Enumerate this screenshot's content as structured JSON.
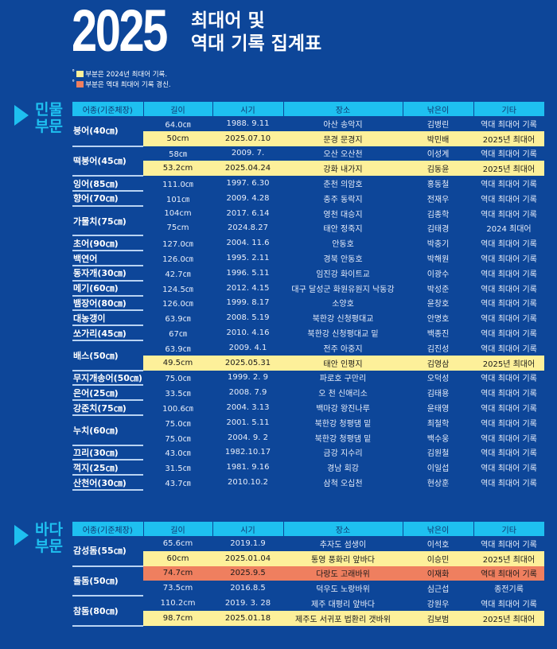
{
  "header": {
    "year": "2025",
    "title_line1": "최대어 및",
    "title_line2": "역대 기록 집계표"
  },
  "legend": [
    {
      "color": "#fdf09a",
      "text": "부분은 2024년 최대어 기록."
    },
    {
      "color": "#ef7f5f",
      "text": "부분은 역대 최대어 기록 경신."
    }
  ],
  "columns": [
    "어종(기준체장)",
    "길이",
    "시기",
    "장소",
    "낚은이",
    "기타"
  ],
  "colors": {
    "background": "#0d4699",
    "header": "#1ec0f0",
    "yellow": "#fdf09a",
    "red": "#ef7f5f"
  },
  "sections": [
    {
      "label1": "민물",
      "label2": "부문",
      "groups": [
        {
          "species": "붕어(40㎝)",
          "rows": [
            [
              "64.0㎝",
              "1988. 9.11",
              "아산 송악지",
              "김병린",
              "역대 최대어 기록",
              ""
            ],
            [
              "50cm",
              "2025.07.10",
              "문경 문경지",
              "박민배",
              "2025년 최대어",
              "y"
            ]
          ]
        },
        {
          "species": "떡붕어(45㎝)",
          "rows": [
            [
              "58㎝",
              "2009. 7.",
              "오산 오산천",
              "이성계",
              "역대 최대어 기록",
              ""
            ],
            [
              "53.2cm",
              "2025.04.24",
              "강화 내가지",
              "김동윤",
              "2025년 최대어",
              "y"
            ]
          ]
        },
        {
          "species": "잉어(85㎝)",
          "rows": [
            [
              "111.0㎝",
              "1997. 6.30",
              "춘천 의암호",
              "홍동철",
              "역대 최대어 기록",
              ""
            ]
          ]
        },
        {
          "species": "향어(70㎝)",
          "rows": [
            [
              "101㎝",
              "2009. 4.28",
              "충주 동락지",
              "전재우",
              "역대 최대어 기록",
              ""
            ]
          ]
        },
        {
          "species": "가물치(75㎝)",
          "rows": [
            [
              "104cm",
              "2017. 6.14",
              "영천 대승지",
              "김종학",
              "역대 최대어 기록",
              ""
            ],
            [
              "75cm",
              "2024.8.27",
              "태안 정죽지",
              "김태경",
              "2024 최대어",
              ""
            ]
          ]
        },
        {
          "species": "초어(90㎝)",
          "rows": [
            [
              "127.0㎝",
              "2004. 11.6",
              "안동호",
              "박충기",
              "역대 최대어 기록",
              ""
            ]
          ]
        },
        {
          "species": "백연어",
          "rows": [
            [
              "126.0㎝",
              "1995. 2.11",
              "경북 안동호",
              "박해원",
              "역대 최대어 기록",
              ""
            ]
          ]
        },
        {
          "species": "동자개(30㎝)",
          "rows": [
            [
              "42.7㎝",
              "1996. 5.11",
              "임진강 화이트교",
              "이광수",
              "역대 최대어 기록",
              ""
            ]
          ]
        },
        {
          "species": "메기(60㎝)",
          "rows": [
            [
              "124.5㎝",
              "2012. 4.15",
              "대구 달성군 화원유원지 낙동강",
              "박성준",
              "역대 최대어 기록",
              ""
            ]
          ]
        },
        {
          "species": "뱀장어(80㎝)",
          "rows": [
            [
              "126.0㎝",
              "1999. 8.17",
              "소양호",
              "윤창호",
              "역대 최대어 기록",
              ""
            ]
          ]
        },
        {
          "species": "대농갱이",
          "rows": [
            [
              "63.9㎝",
              "2008. 5.19",
              "북한강 신청평대교",
              "안명호",
              "역대 최대어 기록",
              ""
            ]
          ]
        },
        {
          "species": "쏘가리(45㎝)",
          "rows": [
            [
              "67㎝",
              "2010. 4.16",
              "북한강 신청평대교 밑",
              "백종진",
              "역대 최대어 기록",
              ""
            ]
          ]
        },
        {
          "species": "배스(50㎝)",
          "rows": [
            [
              "63.9㎝",
              "2009. 4.1",
              "전주 아중지",
              "김진성",
              "역대 최대어 기록",
              ""
            ],
            [
              "49.5cm",
              "2025.05.31",
              "태안 인평지",
              "김영삼",
              "2025년 최대어",
              "y"
            ]
          ]
        },
        {
          "species": "무지개송어(50㎝)",
          "rows": [
            [
              "75.0㎝",
              "1999. 2. 9",
              "파로호 구만리",
              "오덕성",
              "역대 최대어 기록",
              ""
            ]
          ]
        },
        {
          "species": "은어(25㎝)",
          "rows": [
            [
              "33.5㎝",
              "2008. 7.9",
              "오 천 신애리소",
              "김태용",
              "역대 최대어 기록",
              ""
            ]
          ]
        },
        {
          "species": "강준치(75㎝)",
          "rows": [
            [
              "100.6㎝",
              "2004. 3.13",
              "백마강 왕진나루",
              "윤태영",
              "역대 최대어 기록",
              ""
            ]
          ]
        },
        {
          "species": "누치(60㎝)",
          "rows": [
            [
              "75.0㎝",
              "2001. 5.11",
              "북한강 청평댐 밑",
              "최철학",
              "역대 최대어 기록",
              ""
            ],
            [
              "75.0㎝",
              "2004. 9. 2",
              "북한강 청평댐 밑",
              "백수웅",
              "역대 최대어 기록",
              ""
            ]
          ]
        },
        {
          "species": "끄리(30㎝)",
          "rows": [
            [
              "43.0㎝",
              "1982.10.17",
              "금강 지수리",
              "김원철",
              "역대 최대어 기록",
              ""
            ]
          ]
        },
        {
          "species": "꺽지(25㎝)",
          "rows": [
            [
              "31.5㎝",
              "1981. 9.16",
              "경남 회강",
              "이일섭",
              "역대 최대어 기록",
              ""
            ]
          ]
        },
        {
          "species": "산천어(30㎝)",
          "rows": [
            [
              "43.7㎝",
              "2010.10.2",
              "삼척 오십천",
              "현상훈",
              "역대 최대어 기록",
              ""
            ]
          ]
        }
      ]
    },
    {
      "label1": "바다",
      "label2": "부문",
      "groups": [
        {
          "species": "감성돔(55㎝)",
          "rows": [
            [
              "65.6cm",
              "2019.1.9",
              "추자도 섬생이",
              "이석호",
              "역대 최대어 기록",
              ""
            ],
            [
              "60cm",
              "2025.01.04",
              "통영 풍화리 앞바다",
              "이승민",
              "2025년 최대어",
              "y"
            ]
          ]
        },
        {
          "species": "돌돔(50㎝)",
          "rows": [
            [
              "74.7cm",
              "2025.9.5",
              "다랑도 고래바위",
              "이재화",
              "역대 최대어 기록",
              "r"
            ],
            [
              "73.5cm",
              "2016.8.5",
              "덕우도 노랑바위",
              "심근섭",
              "종전기록",
              ""
            ]
          ]
        },
        {
          "species": "참돔(80㎝)",
          "rows": [
            [
              "110.2cm",
              "2019. 3. 28",
              "제주 대평리 앞바다",
              "강원우",
              "역대 최대어 기록",
              ""
            ],
            [
              "98.7cm",
              "2025.01.18",
              "제주도 서귀포 법환리 갯바위",
              "김보범",
              "2025년 최대어",
              "y"
            ]
          ]
        }
      ]
    }
  ]
}
